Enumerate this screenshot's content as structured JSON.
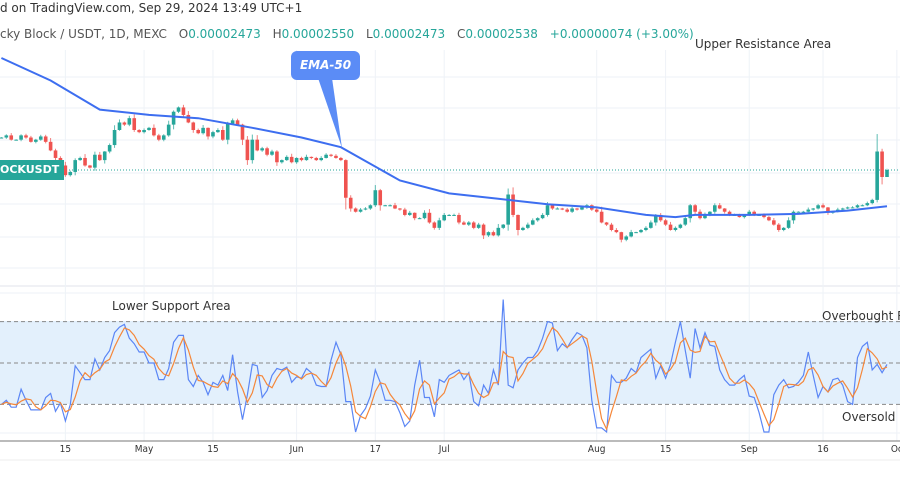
{
  "header": {
    "published": "d on TradingView.com, Sep 29, 2024 13:49 UTC+1",
    "symbol": "cky Block / USDT, 1D, MEXC",
    "open_label": "O",
    "open": "0.00002473",
    "high_label": "H",
    "high": "0.00002550",
    "low_label": "L",
    "low": "0.00002473",
    "close_label": "C",
    "close": "0.00002538",
    "change": "+0.00000074 (+3.00%)"
  },
  "symbol_badge": "OCKUSDT",
  "annotations": {
    "upper": "Upper Resistance Area",
    "ema": "EMA-50",
    "lower": "Lower Support Area",
    "overbought": "Overbought Re",
    "oversold": "Oversold R"
  },
  "colors": {
    "up": "#26a69a",
    "down": "#ef5350",
    "ema": "#3d6ef0",
    "k_line": "#5b86f5",
    "d_line": "#f5873a",
    "band": "#e3f0fc",
    "callout": "#5b8cf6"
  },
  "chart_data": [
    {
      "type": "candlestick",
      "title": "",
      "last_bar_date": "2024-09-29",
      "last_bar": {
        "open": 2.473e-05,
        "high": 2.55e-05,
        "low": 2.473e-05,
        "close": 2.538e-05
      },
      "closes": [
        2.84e-05,
        2.86e-05,
        2.82e-05,
        2.82e-05,
        2.86e-05,
        2.84e-05,
        2.8e-05,
        2.82e-05,
        2.85e-05,
        2.8e-05,
        2.72e-05,
        2.65e-05,
        2.58e-05,
        2.49e-05,
        2.52e-05,
        2.63e-05,
        2.65e-05,
        2.58e-05,
        2.56e-05,
        2.68e-05,
        2.63e-05,
        2.71e-05,
        2.77e-05,
        2.91e-05,
        2.98e-05,
        2.96e-05,
        3.02e-05,
        2.91e-05,
        2.89e-05,
        2.91e-05,
        2.93e-05,
        2.86e-05,
        2.82e-05,
        2.86e-05,
        2.96e-05,
        3.08e-05,
        3.12e-05,
        3.05e-05,
        2.98e-05,
        2.91e-05,
        2.88e-05,
        2.93e-05,
        2.85e-05,
        2.89e-05,
        2.91e-05,
        2.82e-05,
        2.97e-05,
        3e-05,
        2.96e-05,
        2.82e-05,
        2.63e-05,
        2.82e-05,
        2.72e-05,
        2.74e-05,
        2.68e-05,
        2.71e-05,
        2.61e-05,
        2.63e-05,
        2.66e-05,
        2.61e-05,
        2.65e-05,
        2.63e-05,
        2.66e-05,
        2.65e-05,
        2.63e-05,
        2.65e-05,
        2.68e-05,
        2.67e-05,
        2.65e-05,
        2.63e-05,
        2.28e-05,
        2.18e-05,
        2.15e-05,
        2.17e-05,
        2.18e-05,
        2.21e-05,
        2.35e-05,
        2.21e-05,
        2.21e-05,
        2.21e-05,
        2.18e-05,
        2.17e-05,
        2.12e-05,
        2.14e-05,
        2.09e-05,
        2.09e-05,
        2.14e-05,
        2.05e-05,
        2e-05,
        2.07e-05,
        2.12e-05,
        2.12e-05,
        2.12e-05,
        2.05e-05,
        2.03e-05,
        2.05e-05,
        2e-05,
        2.03e-05,
        1.93e-05,
        1.96e-05,
        1.93e-05,
        2e-05,
        2.03e-05,
        2.31e-05,
        2.12e-05,
        1.98e-05,
        2e-05,
        2.03e-05,
        2.07e-05,
        2.09e-05,
        2.12e-05,
        2.21e-05,
        2.18e-05,
        2.18e-05,
        2.17e-05,
        2.15e-05,
        2.18e-05,
        2.17e-05,
        2.19e-05,
        2.21e-05,
        2.17e-05,
        2.15e-05,
        2.05e-05,
        2.03e-05,
        1.98e-05,
        1.96e-05,
        1.89e-05,
        1.92e-05,
        1.96e-05,
        1.96e-05,
        1.98e-05,
        2e-05,
        2.05e-05,
        2.12e-05,
        2.07e-05,
        2.03e-05,
        1.98e-05,
        2e-05,
        2.03e-05,
        2.09e-05,
        2.21e-05,
        2.15e-05,
        2.09e-05,
        2.12e-05,
        2.15e-05,
        2.21e-05,
        2.18e-05,
        2.15e-05,
        2.12e-05,
        2.12e-05,
        2.1e-05,
        2.12e-05,
        2.15e-05,
        2.12e-05,
        2.12e-05,
        2.1e-05,
        2.07e-05,
        2.03e-05,
        1.98e-05,
        2e-05,
        2.07e-05,
        2.15e-05,
        2.15e-05,
        2.15e-05,
        2.17e-05,
        2.18e-05,
        2.21e-05,
        2.19e-05,
        2.14e-05,
        2.15e-05,
        2.17e-05,
        2.18e-05,
        2.19e-05,
        2.19e-05,
        2.21e-05,
        2.21e-05,
        2.23e-05,
        2.26e-05,
        2.71e-05,
        2.473e-05,
        2.538e-05
      ],
      "ema50": [
        {
          "date": "2024-04-02",
          "value": 3.58e-05
        },
        {
          "date": "2024-04-12",
          "value": 3.37e-05
        },
        {
          "date": "2024-04-22",
          "value": 3.1e-05
        },
        {
          "date": "2024-05-02",
          "value": 3.05e-05
        },
        {
          "date": "2024-05-12",
          "value": 3.02e-05
        },
        {
          "date": "2024-05-23",
          "value": 2.93e-05
        },
        {
          "date": "2024-06-02",
          "value": 2.84e-05
        },
        {
          "date": "2024-06-10",
          "value": 2.75e-05
        },
        {
          "date": "2024-06-22",
          "value": 2.44e-05
        },
        {
          "date": "2024-07-02",
          "value": 2.32e-05
        },
        {
          "date": "2024-07-12",
          "value": 2.27e-05
        },
        {
          "date": "2024-07-22",
          "value": 2.22e-05
        },
        {
          "date": "2024-08-01",
          "value": 2.19e-05
        },
        {
          "date": "2024-08-11",
          "value": 2.12e-05
        },
        {
          "date": "2024-08-17",
          "value": 2.1e-05
        },
        {
          "date": "2024-08-21",
          "value": 2.12e-05
        },
        {
          "date": "2024-09-01",
          "value": 2.12e-05
        },
        {
          "date": "2024-09-11",
          "value": 2.13e-05
        },
        {
          "date": "2024-09-21",
          "value": 2.16e-05
        },
        {
          "date": "2024-09-29",
          "value": 2.2e-05
        }
      ],
      "x_ticks": [
        {
          "label": "15",
          "date": "2024-04-15"
        },
        {
          "label": "May",
          "date": "2024-05-01"
        },
        {
          "label": "15",
          "date": "2024-05-15"
        },
        {
          "label": "Jun",
          "date": "2024-06-01"
        },
        {
          "label": "17",
          "date": "2024-06-17"
        },
        {
          "label": "Jul",
          "date": "2024-07-01"
        },
        {
          "label": "Aug",
          "date": "2024-08-01"
        },
        {
          "label": "15",
          "date": "2024-08-15"
        },
        {
          "label": "Sep",
          "date": "2024-09-01"
        },
        {
          "label": "16",
          "date": "2024-09-16"
        },
        {
          "label": "Oc",
          "date": "2024-10-01"
        }
      ],
      "grid": true
    },
    {
      "type": "line",
      "title": "",
      "ylim": [
        0,
        100
      ],
      "levels": [
        80,
        50,
        20
      ],
      "band": [
        20,
        80
      ],
      "k": [
        20,
        23,
        18,
        18,
        31,
        23,
        16,
        16,
        16,
        25,
        28,
        15,
        21,
        8,
        20,
        48,
        43,
        38,
        38,
        53,
        45,
        54,
        59,
        72,
        76,
        78,
        68,
        64,
        58,
        58,
        50,
        50,
        38,
        38,
        46,
        65,
        70,
        70,
        38,
        33,
        41,
        36,
        27,
        36,
        34,
        41,
        30,
        56,
        29,
        9,
        27,
        49,
        48,
        25,
        30,
        41,
        46,
        45,
        47,
        36,
        40,
        39,
        46,
        43,
        34,
        33,
        33,
        52,
        65,
        56,
        22,
        22,
        0,
        12,
        17,
        26,
        45,
        36,
        23,
        23,
        22,
        14,
        4,
        8,
        34,
        52,
        25,
        25,
        11,
        38,
        36,
        41,
        43,
        45,
        38,
        43,
        22,
        19,
        34,
        28,
        45,
        34,
        96,
        34,
        32,
        45,
        50,
        54,
        54,
        59,
        68,
        80,
        79,
        59,
        64,
        61,
        67,
        72,
        70,
        61,
        23,
        3,
        3,
        0,
        41,
        36,
        36,
        39,
        46,
        43,
        54,
        57,
        60,
        39,
        48,
        39,
        49,
        65,
        80,
        59,
        39,
        75,
        61,
        72,
        63,
        62,
        45,
        38,
        34,
        34,
        38,
        41,
        26,
        25,
        14,
        0,
        0,
        27,
        34,
        38,
        32,
        33,
        36,
        41,
        58,
        41,
        25,
        33,
        29,
        38,
        39,
        34,
        22,
        20,
        54,
        62,
        65,
        45,
        49,
        43,
        49
      ]
    }
  ]
}
